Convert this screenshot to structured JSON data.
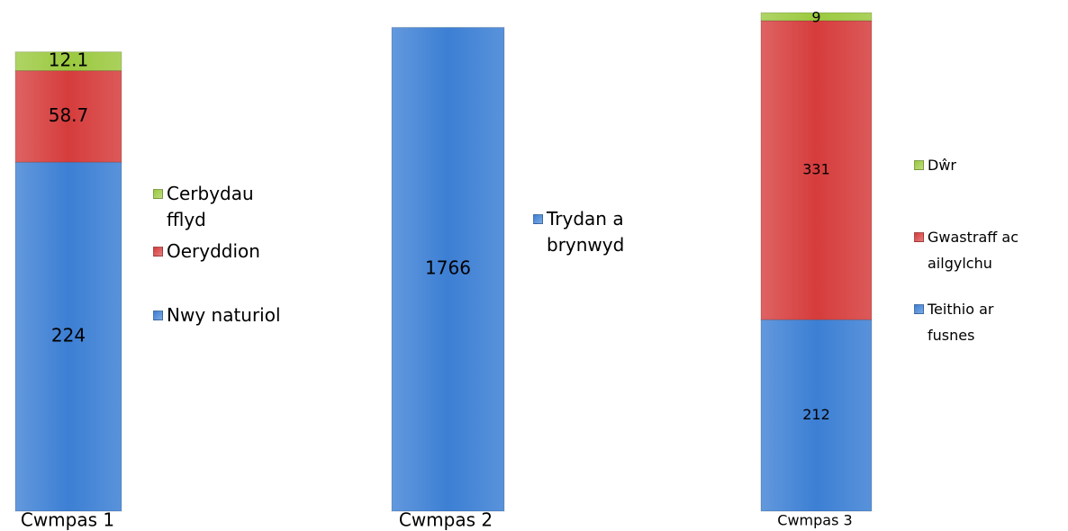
{
  "chart_data": [
    {
      "type": "bar",
      "stacked": true,
      "categories": [
        "Cwmpas 1"
      ],
      "ylim": [
        0,
        320
      ],
      "series": [
        {
          "name": "Nwy naturiol",
          "color": "#3c7fd4",
          "values": [
            224
          ]
        },
        {
          "name": "Oeryddion",
          "color": "#d63c3c",
          "values": [
            58.7
          ]
        },
        {
          "name": "Cerbydau fflyd",
          "color": "#9bc93f",
          "values": [
            12.1
          ]
        }
      ]
    },
    {
      "type": "bar",
      "stacked": true,
      "categories": [
        "Cwmpas 2"
      ],
      "ylim": [
        0,
        1820
      ],
      "series": [
        {
          "name": "Trydan a brynwyd",
          "color": "#3c7fd4",
          "values": [
            1766
          ]
        }
      ]
    },
    {
      "type": "bar",
      "stacked": true,
      "categories": [
        "Cwmpas 3"
      ],
      "ylim": [
        0,
        552
      ],
      "series": [
        {
          "name": "Teithio ar fusnes",
          "color": "#3c7fd4",
          "values": [
            212
          ]
        },
        {
          "name": "Gwastraff ac ailgylchu",
          "color": "#d63c3c",
          "values": [
            331
          ]
        },
        {
          "name": "Dŵr",
          "color": "#9bc93f",
          "values": [
            9
          ]
        }
      ]
    }
  ]
}
